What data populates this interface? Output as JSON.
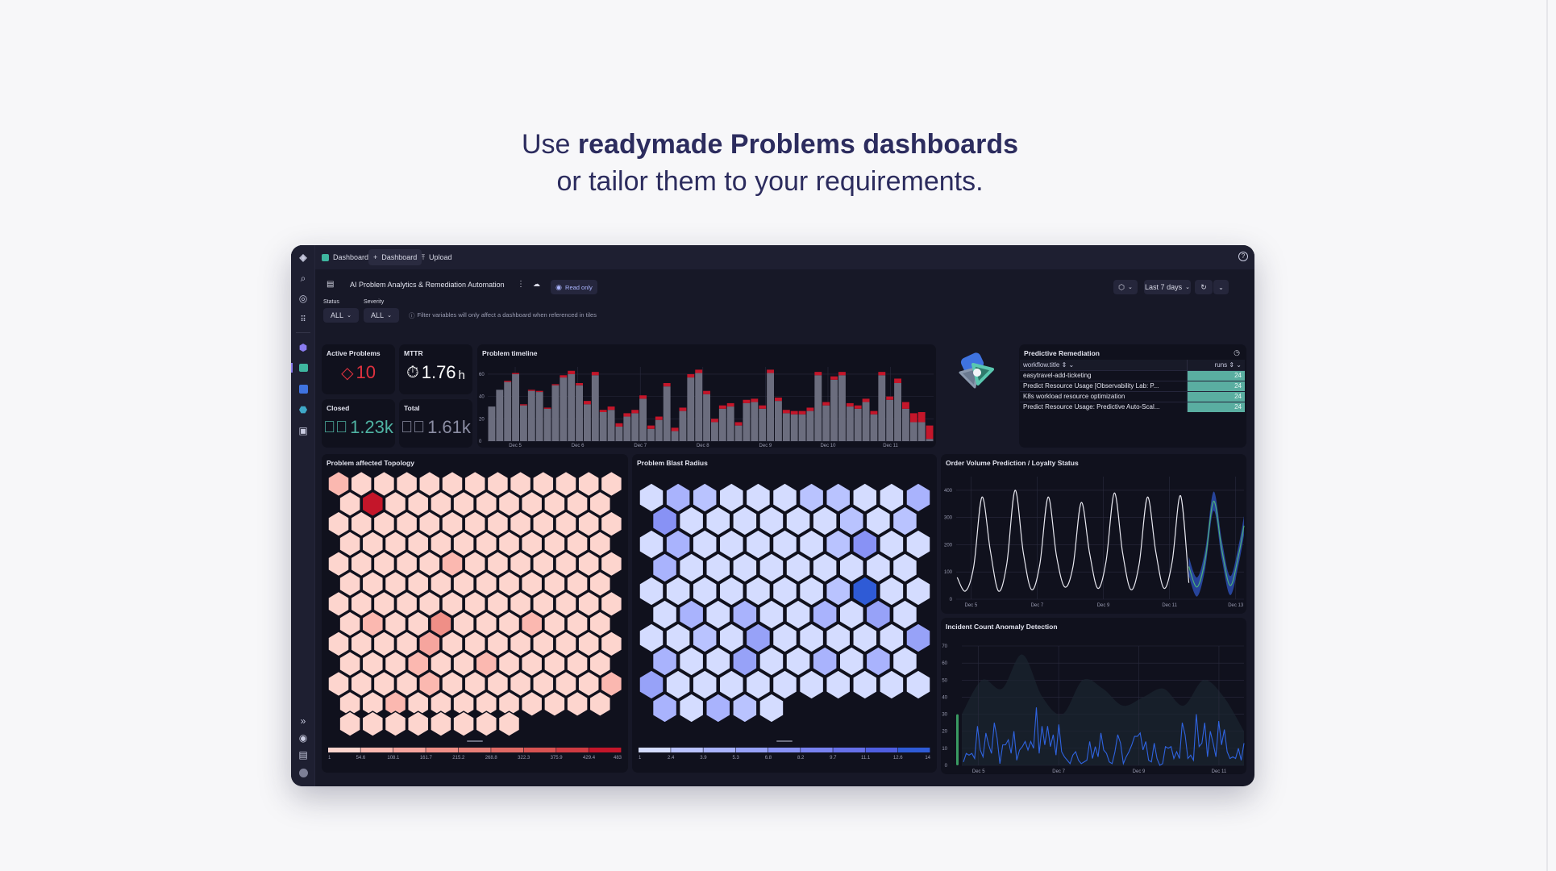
{
  "headline": {
    "line1_prefix": "Use ",
    "line1_bold": "readymade Problems dashboards",
    "line2": "or tailor them to your requirements."
  },
  "topbar": {
    "tabs": [
      {
        "label": "Dashboards",
        "icon": "dashboards-icon"
      },
      {
        "label": "Dashboard",
        "icon": "plus-icon"
      },
      {
        "label": "Upload",
        "icon": "upload-icon"
      }
    ],
    "help_icon": "help-icon"
  },
  "sidebar": {
    "top": [
      "logo-icon",
      "search-icon",
      "globe-icon",
      "apps-grid-icon"
    ],
    "apps": [
      "cube-app-icon",
      "dashboards-app-icon",
      "grid-app-icon",
      "hex-app-icon",
      "monitor-app-icon"
    ],
    "bottom": [
      "expand-icon",
      "support-icon",
      "chart-icon",
      "avatar-icon"
    ]
  },
  "header": {
    "title": "AI Problem Analytics & Remediation Automation",
    "read_only": "Read only",
    "timeframe": "Last 7 days"
  },
  "filters": {
    "status_label": "Status",
    "status_value": "ALL",
    "severity_label": "Severity",
    "severity_value": "ALL",
    "info": "Filter variables will only affect a dashboard when referenced in tiles"
  },
  "kpis": {
    "active": {
      "label": "Active Problems",
      "value": "10",
      "color": "#e0323f"
    },
    "mttr": {
      "label": "MTTR",
      "value": "1.76",
      "unit": "h"
    },
    "closed": {
      "label": "Closed",
      "value": "1.23k",
      "color": "#4fb3a3"
    },
    "total": {
      "label": "Total",
      "value": "1.61k",
      "color": "#8b8da3"
    }
  },
  "predictive": {
    "title": "Predictive Remediation",
    "col1": "workflow.title",
    "col2": "runs",
    "bar_color": "#5aaea1",
    "rows": [
      {
        "title": "easytravel-add-ticketing",
        "runs": "24"
      },
      {
        "title": "Predict Resource Usage [Observability Lab: P...",
        "runs": "24"
      },
      {
        "title": "K8s workload resource optimization",
        "runs": "24"
      },
      {
        "title": "Predict Resource Usage: Predictive Auto-Scal...",
        "runs": "24"
      }
    ]
  },
  "chart_data": [
    {
      "id": "timeline",
      "title": "Problem timeline",
      "type": "bar",
      "stacked": true,
      "ylim": [
        0,
        65
      ],
      "yticks": [
        0,
        20,
        40,
        60
      ],
      "x_range": [
        "Dec 4 15:00",
        "Dec 11 15:00"
      ],
      "xticks": [
        "Dec 5",
        "Dec 6",
        "Dec 7",
        "Dec 8",
        "Dec 9",
        "Dec 10",
        "Dec 11"
      ],
      "series": [
        {
          "color": "#6b6d7e",
          "values": [
            31,
            46,
            53,
            60,
            32,
            45,
            44,
            29,
            50,
            57,
            60,
            50,
            33,
            59,
            26,
            28,
            13,
            22,
            25,
            38,
            11,
            19,
            49,
            9,
            27,
            57,
            61,
            42,
            17,
            29,
            31,
            14,
            34,
            35,
            29,
            61,
            36,
            25,
            24,
            24,
            27,
            59,
            32,
            55,
            59,
            31,
            29,
            35,
            24,
            59,
            37,
            52,
            29,
            17,
            17,
            2
          ]
        },
        {
          "color": "#c4162a",
          "values": [
            0,
            0,
            1,
            1,
            1,
            1,
            1,
            1,
            1,
            2,
            3,
            2,
            3,
            3,
            2,
            3,
            3,
            3,
            3,
            3,
            3,
            3,
            3,
            3,
            3,
            3,
            3,
            3,
            3,
            3,
            3,
            3,
            3,
            3,
            3,
            3,
            3,
            3,
            3,
            3,
            3,
            3,
            3,
            3,
            3,
            3,
            3,
            3,
            3,
            3,
            3,
            4,
            6,
            8,
            9,
            12
          ]
        }
      ]
    },
    {
      "id": "topology",
      "title": "Problem affected Topology",
      "type": "heatmap",
      "legend": [
        "1",
        "54.6",
        "108.1",
        "161.7",
        "215.2",
        "268.8",
        "322.3",
        "375.9",
        "429.4",
        "483"
      ],
      "colors": [
        "#fdd5ce",
        "#fbb8b0",
        "#f6a59e",
        "#ef8f87",
        "#e87f78",
        "#e06a65",
        "#d85352",
        "#cf3b42",
        "#c4162a"
      ],
      "cells": [
        [
          80,
          20,
          20,
          20,
          20,
          20,
          20,
          20,
          20,
          20,
          20,
          20,
          20
        ],
        [
          20,
          483,
          20,
          20,
          20,
          20,
          20,
          20,
          20,
          20,
          20,
          20
        ],
        [
          20,
          20,
          20,
          20,
          20,
          20,
          20,
          20,
          20,
          20,
          20,
          20,
          20
        ],
        [
          20,
          20,
          20,
          20,
          20,
          20,
          20,
          20,
          20,
          20,
          20,
          20
        ],
        [
          20,
          20,
          20,
          20,
          20,
          80,
          20,
          20,
          20,
          20,
          20,
          20,
          20
        ],
        [
          20,
          20,
          20,
          20,
          20,
          20,
          20,
          20,
          20,
          20,
          20,
          20
        ],
        [
          20,
          20,
          20,
          20,
          20,
          20,
          20,
          20,
          20,
          20,
          20,
          20,
          20
        ],
        [
          20,
          80,
          20,
          20,
          190,
          20,
          20,
          20,
          80,
          20,
          20,
          20
        ],
        [
          20,
          20,
          20,
          20,
          140,
          20,
          20,
          20,
          20,
          20,
          20,
          20,
          20
        ],
        [
          20,
          20,
          20,
          80,
          20,
          20,
          80,
          20,
          20,
          20,
          20,
          20
        ],
        [
          20,
          20,
          20,
          20,
          100,
          20,
          20,
          20,
          20,
          20,
          20,
          20,
          80
        ],
        [
          20,
          20,
          80,
          20,
          20,
          20,
          20,
          20,
          20,
          20,
          20,
          20
        ],
        [
          20,
          20,
          20,
          20,
          20,
          20,
          20,
          20
        ]
      ]
    },
    {
      "id": "blast",
      "title": "Problem Blast Radius",
      "type": "heatmap",
      "legend": [
        "1",
        "2.4",
        "3.9",
        "5.3",
        "6.8",
        "8.2",
        "9.7",
        "11.1",
        "12.6",
        "14"
      ],
      "colors": [
        "#d4dcff",
        "#b9c3ff",
        "#a9b3fd",
        "#97a2f8",
        "#8892f5",
        "#7882f0",
        "#6670e8",
        "#4f5ee0",
        "#2f5bd6"
      ],
      "cells": [
        [
          1.5,
          4.5,
          3,
          1.5,
          1.5,
          1.5,
          3,
          3,
          1.5,
          1.5,
          4
        ],
        [
          7,
          1.5,
          1.5,
          1.5,
          1.5,
          1.5,
          1.5,
          3,
          1.5,
          3
        ],
        [
          1.5,
          4,
          1.5,
          1.5,
          1.5,
          1.5,
          1.5,
          3,
          7,
          1.5,
          1.5
        ],
        [
          4,
          1.5,
          1.5,
          1.5,
          1.5,
          1.5,
          1.5,
          1.5,
          1.5,
          1.5
        ],
        [
          1.5,
          1.5,
          1.5,
          1.5,
          1.5,
          1.5,
          1.5,
          3,
          14,
          1.5,
          1.5
        ],
        [
          1.5,
          4.5,
          1.5,
          4.5,
          1.5,
          1.5,
          4.5,
          1.5,
          6,
          1.5
        ],
        [
          1.5,
          1.5,
          3,
          1.5,
          6,
          1.5,
          1.5,
          1.5,
          1.5,
          1.5,
          6
        ],
        [
          4.5,
          1.5,
          1.5,
          6.5,
          1.5,
          1.5,
          4.5,
          1.5,
          4,
          1.5
        ],
        [
          6,
          1.5,
          1.5,
          1.5,
          1.5,
          1.5,
          1.5,
          1.5,
          1.5,
          1.5,
          1.5
        ],
        [
          4.5,
          1.5,
          4.5,
          3,
          1.5
        ]
      ]
    },
    {
      "id": "orders",
      "title": "Order Volume Prediction / Loyalty Status",
      "type": "line",
      "ylim": [
        0,
        450
      ],
      "yticks": [
        0,
        100,
        200,
        300,
        400
      ],
      "xticks": [
        "Dec 5",
        "Dec 7",
        "Dec 9",
        "Dec 11",
        "Dec 13"
      ],
      "observed": {
        "color": "#e8e8f0",
        "x": [
          "Dec 4 14:00",
          "Dec 4 20:00",
          "Dec 5 02:00",
          "Dec 5 08:00",
          "Dec 5 14:00",
          "Dec 5 20:00",
          "Dec 6 02:00",
          "Dec 6 08:00",
          "Dec 6 14:00",
          "Dec 6 20:00",
          "Dec 7 02:00",
          "Dec 7 08:00",
          "Dec 7 14:00",
          "Dec 7 20:00",
          "Dec 8 02:00",
          "Dec 8 08:00",
          "Dec 8 14:00",
          "Dec 8 20:00",
          "Dec 9 02:00",
          "Dec 9 08:00",
          "Dec 9 14:00",
          "Dec 9 20:00",
          "Dec 10 02:00",
          "Dec 10 08:00",
          "Dec 10 14:00",
          "Dec 10 20:00",
          "Dec 11 02:00",
          "Dec 11 08:00",
          "Dec 11 14:00"
        ],
        "y": [
          80,
          30,
          120,
          375,
          180,
          30,
          130,
          400,
          170,
          35,
          130,
          375,
          160,
          45,
          120,
          355,
          170,
          40,
          140,
          390,
          170,
          35,
          130,
          375,
          175,
          40,
          140,
          380,
          60
        ]
      },
      "forecast": {
        "color": "#4caf7a",
        "band_color": "#2a4aa8",
        "x": [
          "Dec 11 14:00",
          "Dec 11 20:00",
          "Dec 12 02:00",
          "Dec 12 08:00",
          "Dec 12 14:00",
          "Dec 12 20:00",
          "Dec 13 02:00",
          "Dec 13 06:00"
        ],
        "y": [
          120,
          45,
          150,
          360,
          180,
          50,
          160,
          270
        ],
        "band": 35
      }
    },
    {
      "id": "incidents",
      "title": "Incident Count Anomaly Detection",
      "type": "line",
      "ylim": [
        0,
        70
      ],
      "yticks": [
        0,
        10,
        20,
        30,
        40,
        50,
        60,
        70
      ],
      "xticks": [
        "Dec 5",
        "Dec 7",
        "Dec 9",
        "Dec 11"
      ],
      "x_range": [
        "Dec 4 14:00",
        "Dec 11 15:00"
      ],
      "color": "#2f63e0",
      "band_color": "#1b2530",
      "marker_color": "#3a9a62",
      "values": [
        2,
        7,
        6,
        7,
        4,
        23,
        9,
        5,
        19,
        12,
        7,
        25,
        16,
        1,
        12,
        12,
        15,
        7,
        20,
        3,
        9,
        11,
        14,
        9,
        14,
        10,
        34,
        7,
        23,
        12,
        23,
        11,
        18,
        6,
        24,
        8,
        5,
        3,
        1,
        6,
        8,
        3,
        1,
        2,
        3,
        14,
        4,
        11,
        5,
        19,
        9,
        7,
        2,
        1,
        8,
        18,
        13,
        1,
        5,
        8,
        12,
        17,
        17,
        19,
        9,
        14,
        3,
        2,
        13,
        4,
        0,
        1,
        11,
        10,
        11,
        4,
        8,
        4,
        25,
        18,
        4,
        6,
        3,
        30,
        11,
        13,
        25,
        5,
        20,
        13,
        5,
        26,
        12,
        21,
        8,
        4,
        5,
        4,
        10,
        3,
        13
      ],
      "band_upper": [
        30,
        50,
        45,
        65,
        40,
        30,
        50,
        45,
        35,
        40,
        45,
        35,
        50,
        40,
        20
      ]
    }
  ]
}
